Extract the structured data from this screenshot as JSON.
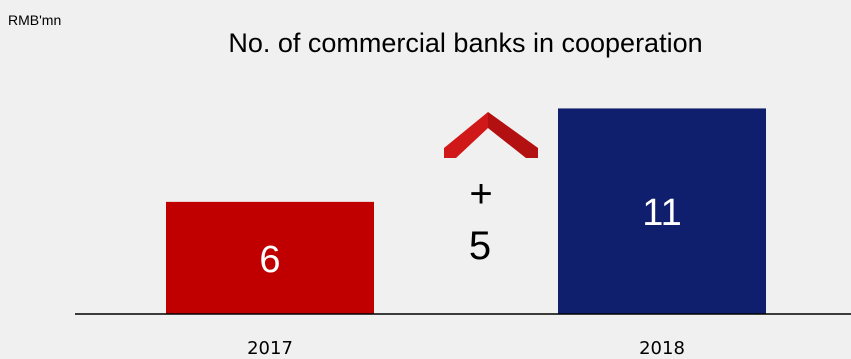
{
  "unit_label": "RMB'mn",
  "chart_data": {
    "type": "bar",
    "title": "No. of commercial banks in cooperation",
    "categories": [
      "2017",
      "2018"
    ],
    "values": [
      6,
      11
    ],
    "colors": [
      "#c00000",
      "#0f1f6e"
    ],
    "value_label_color": "#ffffff",
    "ylim": [
      0,
      12.2
    ],
    "grid": false,
    "legend": "none",
    "delta": {
      "sign": "+",
      "value": "5",
      "arrow_icon": "chevron-up-icon",
      "arrow_color": "#d01818"
    }
  }
}
